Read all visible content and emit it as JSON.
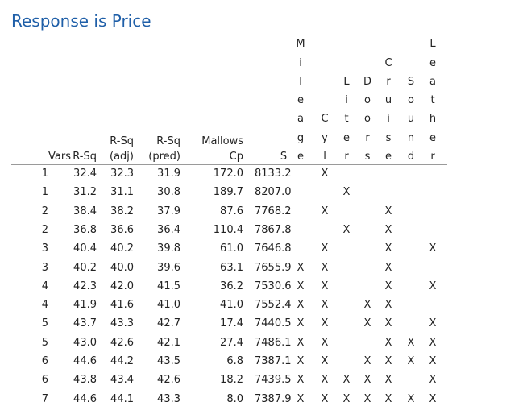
{
  "title": "Response is Price",
  "headers": {
    "vars": "Vars",
    "rsq": "R-Sq",
    "rsq_adj_1": "R-Sq",
    "rsq_adj_2": "(adj)",
    "rsq_pred_1": "R-Sq",
    "rsq_pred_2": "(pred)",
    "cp_1": "Mallows",
    "cp_2": "Cp",
    "s": "S",
    "predictors": [
      "Mileage",
      "Cyl",
      "Liter",
      "Doors",
      "Cruise",
      "Sound",
      "Leather"
    ]
  },
  "mark": "X",
  "rows": [
    {
      "vars": "1",
      "rsq": "32.4",
      "rsq_adj": "32.3",
      "rsq_pred": "31.9",
      "cp": "172.0",
      "s": "8133.2",
      "x": [
        0,
        1,
        0,
        0,
        0,
        0,
        0
      ]
    },
    {
      "vars": "1",
      "rsq": "31.2",
      "rsq_adj": "31.1",
      "rsq_pred": "30.8",
      "cp": "189.7",
      "s": "8207.0",
      "x": [
        0,
        0,
        1,
        0,
        0,
        0,
        0
      ]
    },
    {
      "vars": "2",
      "rsq": "38.4",
      "rsq_adj": "38.2",
      "rsq_pred": "37.9",
      "cp": "87.6",
      "s": "7768.2",
      "x": [
        0,
        1,
        0,
        0,
        1,
        0,
        0
      ]
    },
    {
      "vars": "2",
      "rsq": "36.8",
      "rsq_adj": "36.6",
      "rsq_pred": "36.4",
      "cp": "110.4",
      "s": "7867.8",
      "x": [
        0,
        0,
        1,
        0,
        1,
        0,
        0
      ]
    },
    {
      "vars": "3",
      "rsq": "40.4",
      "rsq_adj": "40.2",
      "rsq_pred": "39.8",
      "cp": "61.0",
      "s": "7646.8",
      "x": [
        0,
        1,
        0,
        0,
        1,
        0,
        1
      ]
    },
    {
      "vars": "3",
      "rsq": "40.2",
      "rsq_adj": "40.0",
      "rsq_pred": "39.6",
      "cp": "63.1",
      "s": "7655.9",
      "x": [
        1,
        1,
        0,
        0,
        1,
        0,
        0
      ]
    },
    {
      "vars": "4",
      "rsq": "42.3",
      "rsq_adj": "42.0",
      "rsq_pred": "41.5",
      "cp": "36.2",
      "s": "7530.6",
      "x": [
        1,
        1,
        0,
        0,
        1,
        0,
        1
      ]
    },
    {
      "vars": "4",
      "rsq": "41.9",
      "rsq_adj": "41.6",
      "rsq_pred": "41.0",
      "cp": "41.0",
      "s": "7552.4",
      "x": [
        1,
        1,
        0,
        1,
        1,
        0,
        0
      ]
    },
    {
      "vars": "5",
      "rsq": "43.7",
      "rsq_adj": "43.3",
      "rsq_pred": "42.7",
      "cp": "17.4",
      "s": "7440.5",
      "x": [
        1,
        1,
        0,
        1,
        1,
        0,
        1
      ]
    },
    {
      "vars": "5",
      "rsq": "43.0",
      "rsq_adj": "42.6",
      "rsq_pred": "42.1",
      "cp": "27.4",
      "s": "7486.1",
      "x": [
        1,
        1,
        0,
        0,
        1,
        1,
        1
      ]
    },
    {
      "vars": "6",
      "rsq": "44.6",
      "rsq_adj": "44.2",
      "rsq_pred": "43.5",
      "cp": "6.8",
      "s": "7387.1",
      "x": [
        1,
        1,
        0,
        1,
        1,
        1,
        1
      ]
    },
    {
      "vars": "6",
      "rsq": "43.8",
      "rsq_adj": "43.4",
      "rsq_pred": "42.6",
      "cp": "18.2",
      "s": "7439.5",
      "x": [
        1,
        1,
        1,
        1,
        1,
        0,
        1
      ]
    },
    {
      "vars": "7",
      "rsq": "44.6",
      "rsq_adj": "44.1",
      "rsq_pred": "43.3",
      "cp": "8.0",
      "s": "7387.9",
      "x": [
        1,
        1,
        1,
        1,
        1,
        1,
        1
      ]
    }
  ]
}
